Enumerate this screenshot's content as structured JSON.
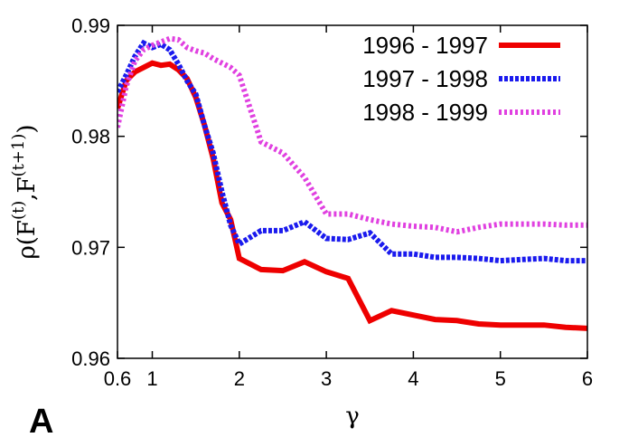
{
  "panel_label": "A",
  "chart_data": {
    "type": "line",
    "title": "",
    "xlabel": "γ",
    "ylabel": "ρ(F(t),F(t+1))",
    "ylabel_parts": {
      "rho": "ρ(F",
      "sup1": "(t)",
      "mid": ",F",
      "sup2": "(t+1)",
      "close": ")"
    },
    "xlim": [
      0.6,
      6
    ],
    "ylim": [
      0.96,
      0.99
    ],
    "x_ticks": [
      0.6,
      1,
      2,
      3,
      4,
      5,
      6
    ],
    "x_tick_labels": [
      "0.6",
      "1",
      "2",
      "3",
      "4",
      "5",
      "6"
    ],
    "y_ticks": [
      0.96,
      0.97,
      0.98,
      0.99
    ],
    "y_tick_labels": [
      "0.96",
      "0.97",
      "0.98",
      "0.99"
    ],
    "grid": false,
    "legend_position": "top-right",
    "series": [
      {
        "name": "1996 - 1997",
        "color": "#ee0000",
        "style": "solid",
        "x": [
          0.6,
          0.7,
          0.8,
          0.9,
          1.0,
          1.1,
          1.2,
          1.3,
          1.4,
          1.5,
          1.6,
          1.7,
          1.8,
          1.9,
          2.0,
          2.25,
          2.5,
          2.75,
          3.0,
          3.25,
          3.5,
          3.75,
          4.0,
          4.25,
          4.5,
          4.75,
          5.0,
          5.25,
          5.5,
          5.75,
          6.0
        ],
        "y": [
          0.9825,
          0.985,
          0.9858,
          0.9862,
          0.9866,
          0.9864,
          0.9865,
          0.986,
          0.9852,
          0.9835,
          0.981,
          0.978,
          0.974,
          0.9725,
          0.969,
          0.968,
          0.9679,
          0.9687,
          0.9678,
          0.9672,
          0.9634,
          0.9643,
          0.9639,
          0.9635,
          0.9634,
          0.9631,
          0.963,
          0.963,
          0.963,
          0.9628,
          0.9627
        ]
      },
      {
        "name": "1997 - 1998",
        "color": "#1a1aee",
        "style": "dashed",
        "x": [
          0.6,
          0.7,
          0.8,
          0.9,
          1.0,
          1.1,
          1.2,
          1.3,
          1.4,
          1.5,
          1.6,
          1.7,
          1.8,
          1.9,
          2.0,
          2.25,
          2.5,
          2.75,
          3.0,
          3.25,
          3.5,
          3.75,
          4.0,
          4.25,
          4.5,
          4.75,
          5.0,
          5.25,
          5.5,
          5.75,
          6.0
        ],
        "y": [
          0.984,
          0.9855,
          0.9872,
          0.9884,
          0.988,
          0.9883,
          0.9878,
          0.9865,
          0.985,
          0.9838,
          0.981,
          0.9785,
          0.975,
          0.972,
          0.9703,
          0.9715,
          0.9715,
          0.9723,
          0.9708,
          0.9707,
          0.9713,
          0.9694,
          0.9694,
          0.9691,
          0.9691,
          0.969,
          0.9688,
          0.9689,
          0.969,
          0.9688,
          0.9688
        ]
      },
      {
        "name": "1998 - 1999",
        "color": "#e040e0",
        "style": "dotted",
        "x": [
          0.6,
          0.7,
          0.8,
          0.9,
          1.0,
          1.1,
          1.2,
          1.3,
          1.4,
          1.5,
          1.6,
          1.7,
          1.8,
          1.9,
          2.0,
          2.25,
          2.5,
          2.75,
          3.0,
          3.25,
          3.5,
          3.75,
          4.0,
          4.25,
          4.5,
          4.75,
          5.0,
          5.25,
          5.5,
          5.75,
          6.0
        ],
        "y": [
          0.9808,
          0.9845,
          0.9868,
          0.9878,
          0.9882,
          0.9885,
          0.9888,
          0.9887,
          0.988,
          0.9877,
          0.9875,
          0.987,
          0.9866,
          0.9862,
          0.9855,
          0.9795,
          0.9785,
          0.9763,
          0.973,
          0.973,
          0.9725,
          0.9721,
          0.9719,
          0.9718,
          0.9714,
          0.9718,
          0.9721,
          0.9721,
          0.9721,
          0.972,
          0.972
        ]
      }
    ]
  }
}
